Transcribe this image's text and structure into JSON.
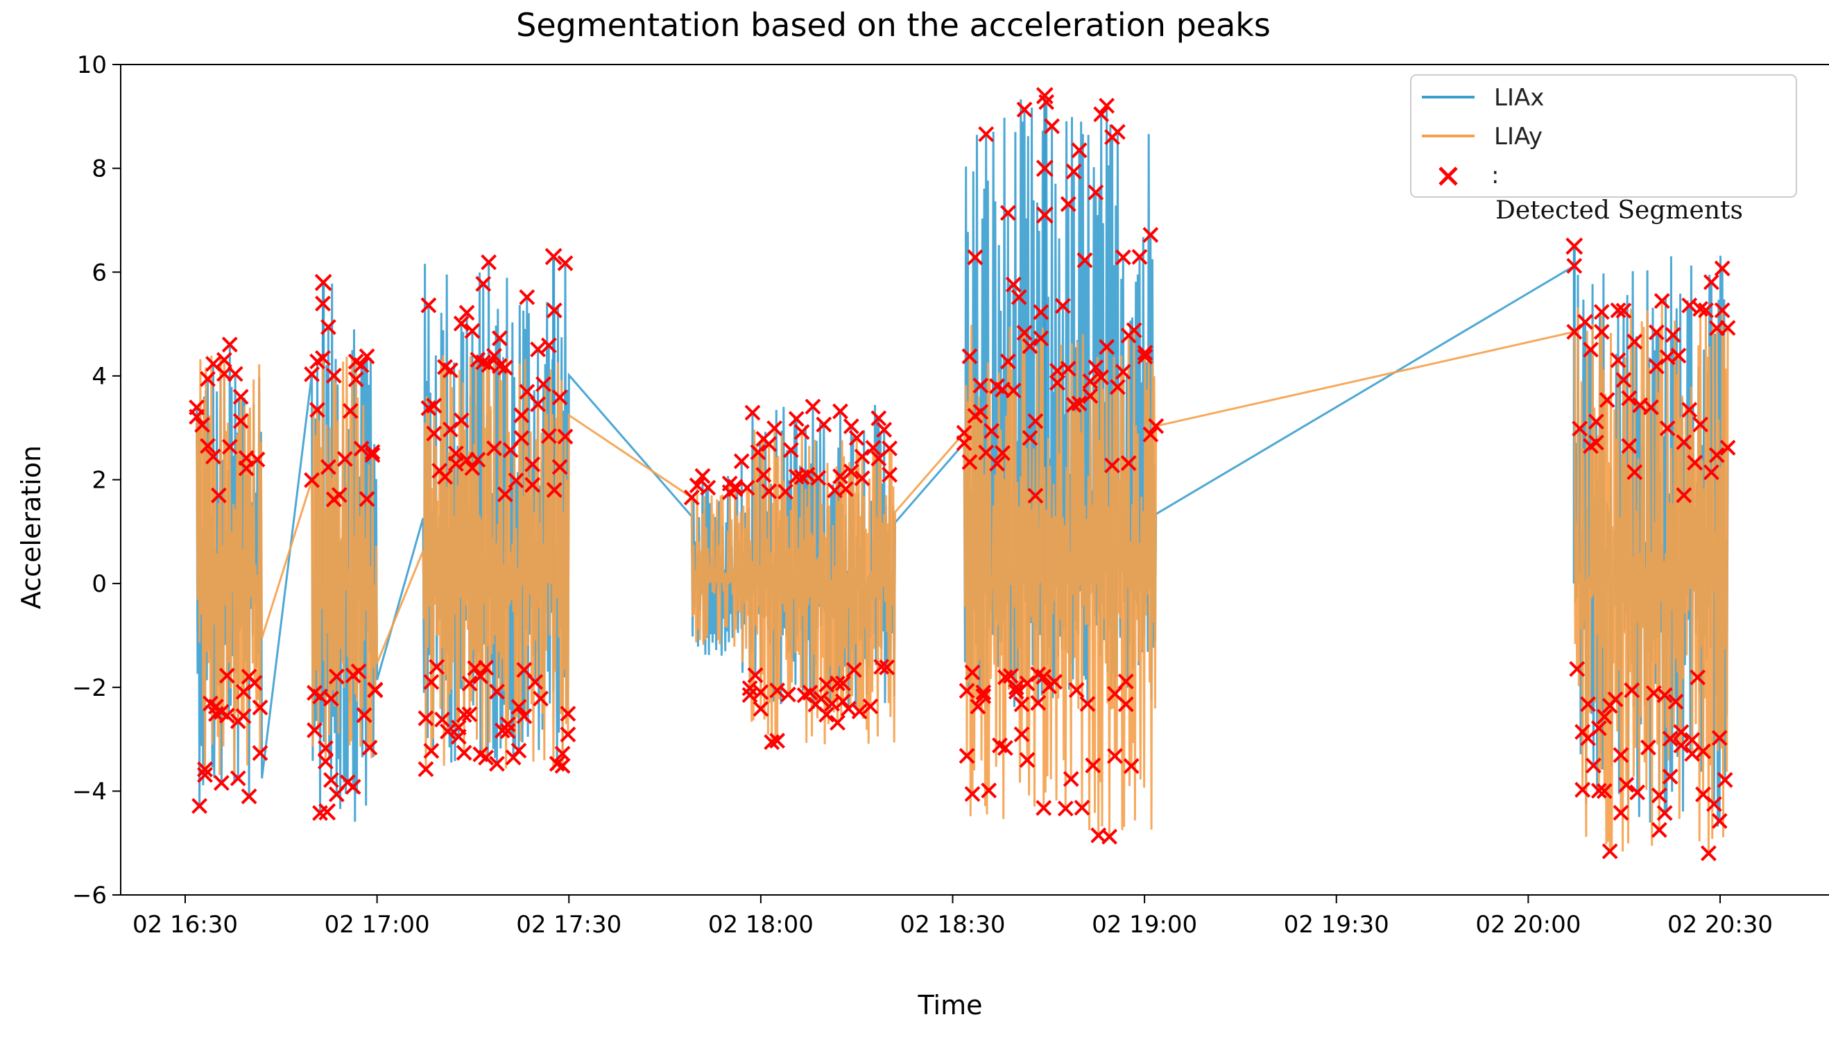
{
  "chart_data": {
    "type": "line",
    "title": "Segmentation based on the acceleration peaks",
    "xlabel": "Time",
    "ylabel": "Acceleration",
    "ylim": [
      -6,
      10
    ],
    "yticks": [
      -6,
      -4,
      -2,
      0,
      2,
      4,
      6,
      8,
      10
    ],
    "ytick_labels": [
      "−6",
      "−4",
      "−2",
      "0",
      "2",
      "4",
      "6",
      "8",
      "10"
    ],
    "xlim_minutes": [
      16.3,
      20.8
    ],
    "xticks_hours": [
      16.5,
      17.0,
      17.5,
      18.0,
      18.5,
      19.0,
      19.5,
      20.0,
      20.5
    ],
    "xtick_labels": [
      "02 16:30",
      "02 17:00",
      "02 17:30",
      "02 18:00",
      "02 18:30",
      "02 19:00",
      "02 19:30",
      "02 20:00",
      "02 20:30"
    ],
    "legend": {
      "position": "top-right",
      "entries": [
        {
          "label": "LIAx",
          "color": "#3a9fcf",
          "marker": "line"
        },
        {
          "label": "LIAy",
          "color": "#f5a04a",
          "marker": "line"
        },
        {
          "label": ":",
          "color": "#ff0000",
          "marker": "x"
        }
      ],
      "overlay_note": "Detected Segments"
    },
    "bursts": [
      {
        "start": 16.53,
        "end": 16.7,
        "x_min": -4.3,
        "x_max": 4.7,
        "y_min": -3.8,
        "y_max": 4.5
      },
      {
        "start": 16.83,
        "end": 17.0,
        "x_min": -4.6,
        "x_max": 5.8,
        "y_min": -3.6,
        "y_max": 4.6
      },
      {
        "start": 17.12,
        "end": 17.5,
        "x_min": -3.5,
        "x_max": 6.3,
        "y_min": -3.7,
        "y_max": 4.5
      },
      {
        "start": 17.82,
        "end": 17.95,
        "x_min": -1.4,
        "x_max": 2.1,
        "y_min": -1.3,
        "y_max": 2.0
      },
      {
        "start": 17.95,
        "end": 18.35,
        "x_min": -2.5,
        "x_max": 3.5,
        "y_min": -3.1,
        "y_max": 3.0
      },
      {
        "start": 18.53,
        "end": 19.03,
        "x_min": -2.4,
        "x_max": 9.4,
        "y_min": -4.9,
        "y_max": 5.0
      },
      {
        "start": 20.12,
        "end": 20.52,
        "x_min": -4.7,
        "x_max": 6.5,
        "y_min": -5.3,
        "y_max": 5.5
      }
    ],
    "series": [
      {
        "name": "LIAx",
        "color": "#3a9fcf",
        "baseline": [
          [
            16.53,
            -0.4
          ],
          [
            16.7,
            -0.35
          ],
          [
            16.83,
            -0.3
          ],
          [
            17.0,
            -0.25
          ],
          [
            17.5,
            -0.05
          ],
          [
            17.95,
            0.0
          ],
          [
            18.35,
            -0.1
          ],
          [
            18.53,
            -0.2
          ],
          [
            19.03,
            0.5
          ],
          [
            20.12,
            0.1
          ],
          [
            20.52,
            0.0
          ]
        ]
      },
      {
        "name": "LIAy",
        "color": "#f5a04a",
        "baseline": [
          [
            16.53,
            0.1
          ],
          [
            16.7,
            0.0
          ],
          [
            16.83,
            -0.15
          ],
          [
            17.0,
            -0.1
          ],
          [
            17.5,
            0.05
          ],
          [
            17.95,
            0.1
          ],
          [
            18.35,
            0.0
          ],
          [
            18.53,
            0.0
          ],
          [
            19.03,
            0.1
          ],
          [
            20.12,
            0.0
          ],
          [
            20.52,
            0.0
          ]
        ]
      }
    ],
    "notable_peaks": [
      {
        "series": "LIAx",
        "time_hours": 18.74,
        "value": 9.4
      },
      {
        "series": "LIAx",
        "time_hours": 18.74,
        "value": 8.0
      },
      {
        "series": "LIAx",
        "time_hours": 18.74,
        "value": 7.1
      },
      {
        "series": "LIAx",
        "time_hours": 20.12,
        "value": 6.5
      },
      {
        "series": "LIAx",
        "time_hours": 17.46,
        "value": 6.3
      },
      {
        "series": "LIAx",
        "time_hours": 16.86,
        "value": 5.8
      },
      {
        "series": "LIAy",
        "time_hours": 16.87,
        "value": -4.4
      }
    ]
  }
}
